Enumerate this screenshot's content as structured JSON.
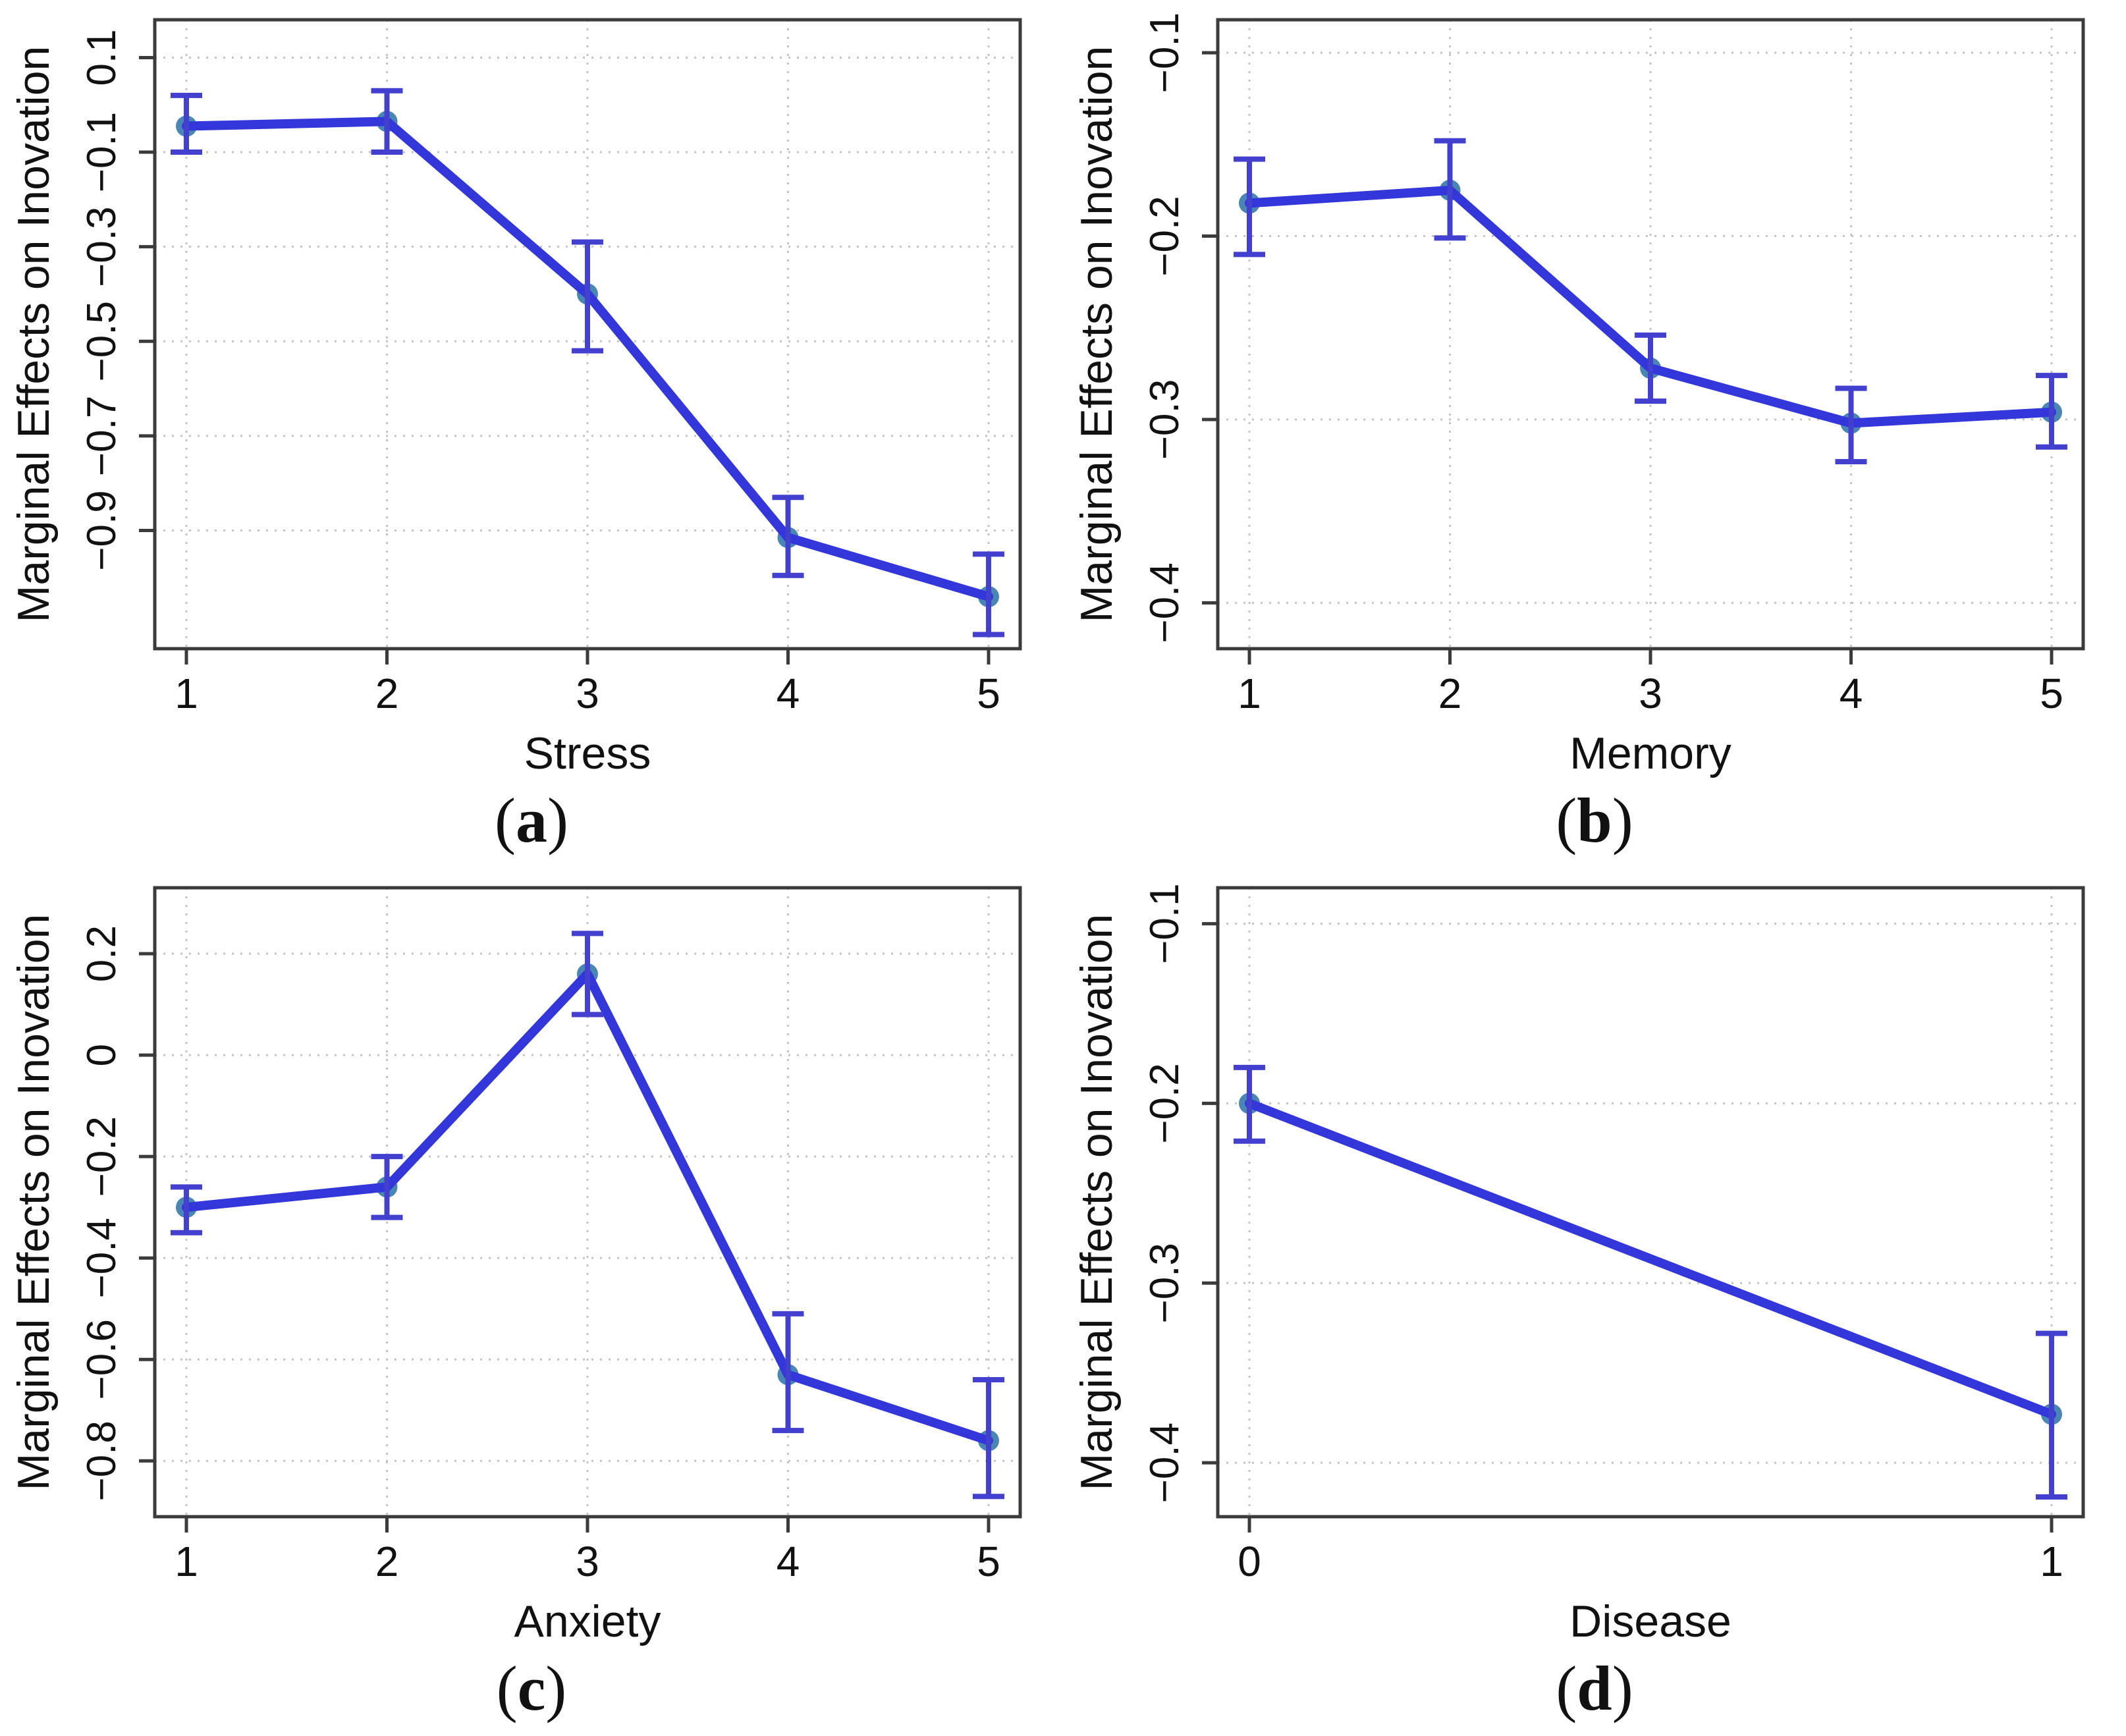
{
  "figure": {
    "background": "#ffffff",
    "caption_open": "(",
    "caption_close": ")"
  },
  "style": {
    "line_color": "#3336d8",
    "error_bar_color": "#4340d0",
    "marker_color": "#4080b0",
    "grid_color": "#c4c4c4",
    "frame_color": "#3b3b3b",
    "text_color": "#111111"
  },
  "chart_data": [
    {
      "id": "a",
      "type": "line",
      "caption_letter": "a",
      "title": "",
      "xlabel": "Stress",
      "ylabel": "Marginal Effects on Inovation",
      "x": [
        1,
        2,
        3,
        4,
        5
      ],
      "x_tick_labels": [
        "1",
        "2",
        "3",
        "4",
        "5"
      ],
      "y": [
        -0.045,
        -0.035,
        -0.4,
        -0.915,
        -1.04
      ],
      "err_low": [
        -0.1,
        -0.1,
        -0.52,
        -0.995,
        -1.12
      ],
      "err_high": [
        0.02,
        0.03,
        -0.29,
        -0.83,
        -0.95
      ],
      "y_ticks": [
        0.1,
        -0.1,
        -0.3,
        -0.5,
        -0.7,
        -0.9
      ],
      "y_tick_labels": [
        "0.1",
        "−0.1",
        "−0.3",
        "−0.5",
        "−0.7",
        "−0.9"
      ],
      "ylim": [
        -1.15,
        0.18
      ],
      "grid": true,
      "legend_position": "none"
    },
    {
      "id": "b",
      "type": "line",
      "caption_letter": "b",
      "title": "",
      "xlabel": "Memory",
      "ylabel": "Marginal Effects on Inovation",
      "x": [
        1,
        2,
        3,
        4,
        5
      ],
      "x_tick_labels": [
        "1",
        "2",
        "3",
        "4",
        "5"
      ],
      "y": [
        -0.182,
        -0.175,
        -0.272,
        -0.302,
        -0.296
      ],
      "err_low": [
        -0.21,
        -0.201,
        -0.29,
        -0.323,
        -0.315
      ],
      "err_high": [
        -0.158,
        -0.148,
        -0.254,
        -0.283,
        -0.276
      ],
      "y_ticks": [
        -0.1,
        -0.2,
        -0.3,
        -0.4
      ],
      "y_tick_labels": [
        "−0.1",
        "−0.2",
        "−0.3",
        "−0.4"
      ],
      "ylim": [
        -0.425,
        -0.082
      ],
      "grid": true,
      "legend_position": "none"
    },
    {
      "id": "c",
      "type": "line",
      "caption_letter": "c",
      "title": "",
      "xlabel": "Anxiety",
      "ylabel": "Marginal Effects on Inovation",
      "x": [
        1,
        2,
        3,
        4,
        5
      ],
      "x_tick_labels": [
        "1",
        "2",
        "3",
        "4",
        "5"
      ],
      "y": [
        -0.3,
        -0.26,
        0.16,
        -0.63,
        -0.76
      ],
      "err_low": [
        -0.35,
        -0.32,
        0.08,
        -0.74,
        -0.87
      ],
      "err_high": [
        -0.26,
        -0.2,
        0.24,
        -0.51,
        -0.64
      ],
      "y_ticks": [
        0.2,
        0,
        -0.2,
        -0.4,
        -0.6,
        -0.8
      ],
      "y_tick_labels": [
        "0.2",
        "0",
        "−0.2",
        "−0.4",
        "−0.6",
        "−0.8"
      ],
      "ylim": [
        -0.91,
        0.33
      ],
      "grid": true,
      "legend_position": "none"
    },
    {
      "id": "d",
      "type": "line",
      "caption_letter": "d",
      "title": "",
      "xlabel": "Disease",
      "ylabel": "Marginal Effects on Inovation",
      "x": [
        0,
        1
      ],
      "x_tick_labels": [
        "0",
        "1"
      ],
      "y": [
        -0.2,
        -0.373
      ],
      "err_low": [
        -0.221,
        -0.419
      ],
      "err_high": [
        -0.18,
        -0.328
      ],
      "y_ticks": [
        -0.1,
        -0.2,
        -0.3,
        -0.4
      ],
      "y_tick_labels": [
        "−0.1",
        "−0.2",
        "−0.3",
        "−0.4"
      ],
      "ylim": [
        -0.43,
        -0.08
      ],
      "grid": true,
      "legend_position": "none"
    }
  ]
}
